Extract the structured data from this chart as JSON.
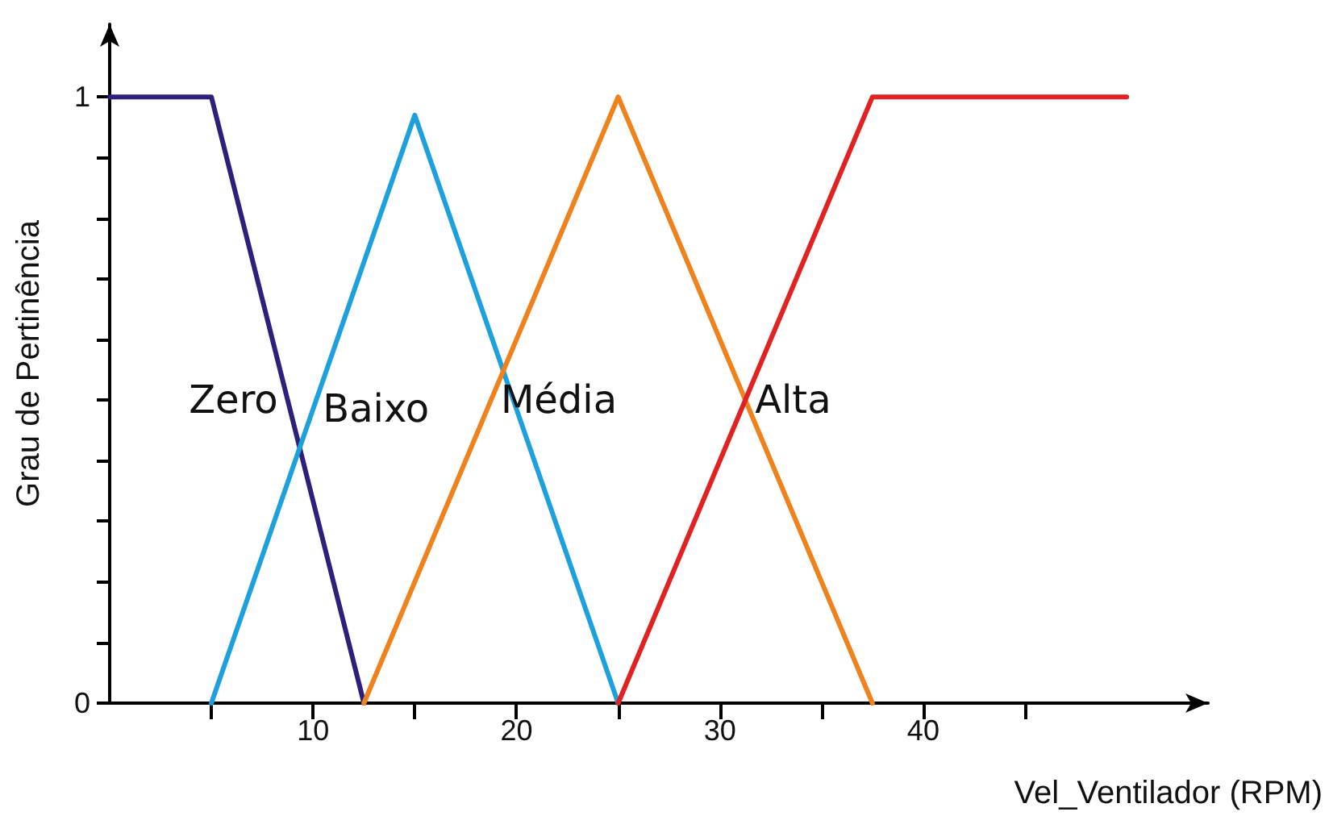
{
  "chart_data": {
    "type": "line",
    "xlabel": "Vel_Ventilador (RPM)",
    "ylabel": "Grau de Pertinência",
    "xlim": [
      0,
      54
    ],
    "ylim": [
      0,
      1.12
    ],
    "xticks": [
      {
        "value": 5,
        "label": null
      },
      10,
      {
        "value": 15,
        "label": null
      },
      20,
      {
        "value": 25,
        "label": null
      },
      30,
      {
        "value": 35,
        "label": null
      },
      40,
      {
        "value": 45,
        "label": null
      }
    ],
    "yticks": [
      0,
      {
        "value": 0.1,
        "label": null
      },
      {
        "value": 0.2,
        "label": null
      },
      {
        "value": 0.3,
        "label": null
      },
      {
        "value": 0.4,
        "label": null
      },
      {
        "value": 0.5,
        "label": null
      },
      {
        "value": 0.6,
        "label": null
      },
      {
        "value": 0.7,
        "label": null
      },
      {
        "value": 0.8,
        "label": null
      },
      {
        "value": 0.9,
        "label": null
      },
      1
    ],
    "series": [
      {
        "name": "Zero",
        "color": "#2e1f7c",
        "x": [
          0,
          5,
          12.5
        ],
        "values": [
          1,
          1,
          0
        ]
      },
      {
        "name": "Baixo",
        "color": "#1ea0dc",
        "x": [
          5,
          15,
          25
        ],
        "values": [
          0,
          0.97,
          0
        ]
      },
      {
        "name": "Média",
        "color": "#f0821e",
        "x": [
          12.5,
          25,
          37.5
        ],
        "values": [
          0,
          1,
          0
        ]
      },
      {
        "name": "Alta",
        "color": "#e02222",
        "x": [
          25,
          37.5,
          50
        ],
        "values": [
          0,
          1,
          1
        ]
      }
    ],
    "grid": false,
    "marker": "none",
    "line_style": "solid",
    "legend": false
  }
}
